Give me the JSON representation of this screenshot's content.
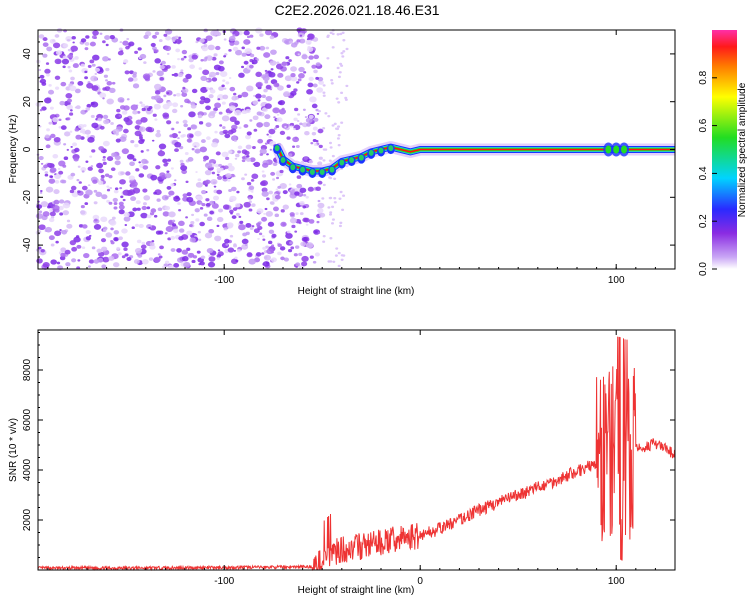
{
  "figure_title": "C2E2.2026.021.18.46.E31",
  "chart_data": [
    {
      "type": "heatmap",
      "title": "C2E2.2026.021.18.46.E31",
      "xlabel": "Height of straight line (km)",
      "ylabel": "Frequency (Hz)",
      "xlim": [
        -195,
        130
      ],
      "ylim": [
        -50,
        50
      ],
      "xticks": [
        -100,
        100
      ],
      "yticks": [
        -40,
        -20,
        0,
        20,
        40
      ],
      "noise_region_x": [
        -195,
        -50
      ],
      "signal_track": [
        {
          "x": -73,
          "y": 1
        },
        {
          "x": -70,
          "y": -4
        },
        {
          "x": -65,
          "y": -7
        },
        {
          "x": -60,
          "y": -8
        },
        {
          "x": -55,
          "y": -9
        },
        {
          "x": -50,
          "y": -9
        },
        {
          "x": -45,
          "y": -8
        },
        {
          "x": -40,
          "y": -5
        },
        {
          "x": -35,
          "y": -4
        },
        {
          "x": -30,
          "y": -3
        },
        {
          "x": -25,
          "y": -1
        },
        {
          "x": -20,
          "y": 0
        },
        {
          "x": -15,
          "y": 1
        },
        {
          "x": -10,
          "y": 0
        },
        {
          "x": -5,
          "y": -1
        },
        {
          "x": 0,
          "y": 0
        },
        {
          "x": 10,
          "y": 0
        },
        {
          "x": 50,
          "y": 0
        },
        {
          "x": 100,
          "y": 0
        },
        {
          "x": 130,
          "y": 0
        }
      ],
      "colorbar": {
        "label": "Normalized spectral amplitude",
        "range": [
          0,
          1
        ],
        "ticks": [
          0.0,
          0.2,
          0.4,
          0.6,
          0.8
        ]
      },
      "colors": {
        "noise": "#9a4ef0",
        "track_core": "#ff1010",
        "track_mid": "#22dd22",
        "track_edge": "#1a35ff"
      }
    },
    {
      "type": "line",
      "xlabel": "Height of straight line (km)",
      "ylabel": "SNR (10 * v/v)",
      "xlim": [
        -195,
        130
      ],
      "ylim": [
        0,
        9600
      ],
      "xticks": [
        -100,
        0,
        100
      ],
      "yticks": [
        2000,
        4000,
        6000,
        8000
      ],
      "line_color": "#ee3333",
      "x": [
        -195,
        -150,
        -100,
        -70,
        -55,
        -50,
        -45,
        -40,
        -30,
        -20,
        -10,
        0,
        10,
        20,
        30,
        40,
        50,
        60,
        70,
        80,
        85,
        90,
        95,
        100,
        103,
        105,
        108,
        110,
        115,
        120,
        125,
        130
      ],
      "y": [
        80,
        80,
        100,
        120,
        130,
        300,
        700,
        800,
        950,
        1100,
        1250,
        1400,
        1650,
        2000,
        2400,
        2700,
        3000,
        3300,
        3600,
        3950,
        4100,
        4300,
        4500,
        4750,
        4700,
        4600,
        4700,
        4800,
        4950,
        5050,
        4850,
        4600
      ]
    }
  ]
}
